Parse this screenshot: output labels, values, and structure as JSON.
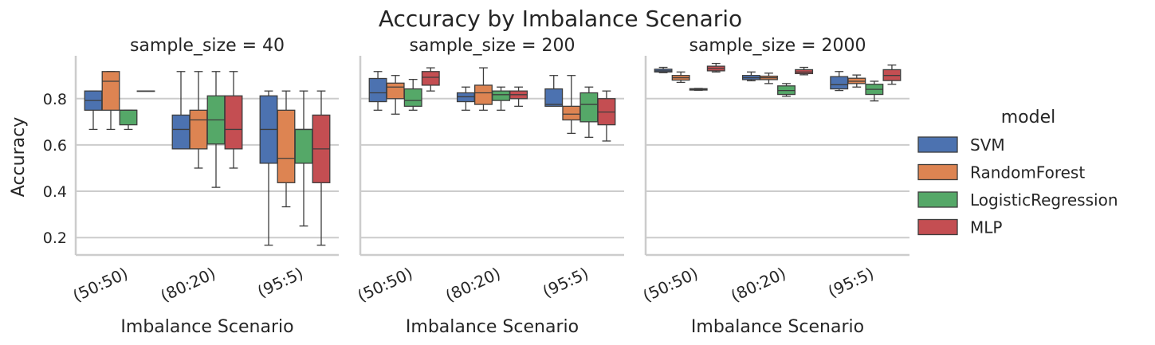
{
  "chart_data": {
    "type": "box",
    "title": "Accuracy by Imbalance Scenario",
    "ylabel": "Accuracy",
    "xlabel": "Imbalance Scenario",
    "ylim": [
      0.125,
      0.985
    ],
    "yticks": [
      0.2,
      0.4,
      0.6,
      0.8
    ],
    "ytick_labels": [
      "0.2",
      "0.4",
      "0.6",
      "0.8"
    ],
    "grid": "horizontal",
    "categories": [
      "(50:50)",
      "(80:20)",
      "(95:5)"
    ],
    "legend": {
      "title": "model",
      "placement": "right",
      "entries": [
        "SVM",
        "RandomForest",
        "LogisticRegression",
        "MLP"
      ]
    },
    "colors": {
      "SVM": "#4c72b0",
      "RandomForest": "#dd8452",
      "LogisticRegression": "#55a868",
      "MLP": "#c44e52",
      "edge": "#3d3d3d",
      "grid": "#cccccc",
      "axis": "#cccccc"
    },
    "panels": [
      {
        "title": "sample_size = 40",
        "series": [
          {
            "name": "SVM",
            "boxes": [
              {
                "category": "(50:50)",
                "whislo": 0.667,
                "q1": 0.75,
                "med": 0.792,
                "q3": 0.833,
                "whishi": 0.833
              },
              {
                "category": "(80:20)",
                "whislo": 0.583,
                "q1": 0.583,
                "med": 0.667,
                "q3": 0.729,
                "whishi": 0.917
              },
              {
                "category": "(95:5)",
                "whislo": 0.167,
                "q1": 0.521,
                "med": 0.667,
                "q3": 0.812,
                "whishi": 0.833
              }
            ]
          },
          {
            "name": "RandomForest",
            "boxes": [
              {
                "category": "(50:50)",
                "whislo": 0.667,
                "q1": 0.75,
                "med": 0.875,
                "q3": 0.917,
                "whishi": 0.917
              },
              {
                "category": "(80:20)",
                "whislo": 0.5,
                "q1": 0.583,
                "med": 0.708,
                "q3": 0.75,
                "whishi": 0.917
              },
              {
                "category": "(95:5)",
                "whislo": 0.333,
                "q1": 0.437,
                "med": 0.542,
                "q3": 0.75,
                "whishi": 0.833
              }
            ]
          },
          {
            "name": "LogisticRegression",
            "boxes": [
              {
                "category": "(50:50)",
                "whislo": 0.667,
                "q1": 0.687,
                "med": 0.75,
                "q3": 0.75,
                "whishi": 0.75
              },
              {
                "category": "(80:20)",
                "whislo": 0.417,
                "q1": 0.604,
                "med": 0.708,
                "q3": 0.812,
                "whishi": 0.917
              },
              {
                "category": "(95:5)",
                "whislo": 0.25,
                "q1": 0.521,
                "med": 0.667,
                "q3": 0.667,
                "whishi": 0.833
              }
            ]
          },
          {
            "name": "MLP",
            "boxes": [
              {
                "category": "(50:50)",
                "whislo": 0.833,
                "q1": 0.833,
                "med": 0.833,
                "q3": 0.833,
                "whishi": 0.833
              },
              {
                "category": "(80:20)",
                "whislo": 0.5,
                "q1": 0.583,
                "med": 0.667,
                "q3": 0.812,
                "whishi": 0.917
              },
              {
                "category": "(95:5)",
                "whislo": 0.167,
                "q1": 0.437,
                "med": 0.583,
                "q3": 0.729,
                "whishi": 0.833
              }
            ]
          }
        ]
      },
      {
        "title": "sample_size = 200",
        "series": [
          {
            "name": "SVM",
            "boxes": [
              {
                "category": "(50:50)",
                "whislo": 0.75,
                "q1": 0.787,
                "med": 0.825,
                "q3": 0.887,
                "whishi": 0.917
              },
              {
                "category": "(80:20)",
                "whislo": 0.75,
                "q1": 0.787,
                "med": 0.808,
                "q3": 0.825,
                "whishi": 0.85
              },
              {
                "category": "(95:5)",
                "whislo": 0.767,
                "q1": 0.767,
                "med": 0.775,
                "q3": 0.842,
                "whishi": 0.9
              }
            ]
          },
          {
            "name": "RandomForest",
            "boxes": [
              {
                "category": "(50:50)",
                "whislo": 0.733,
                "q1": 0.8,
                "med": 0.85,
                "q3": 0.867,
                "whishi": 0.9
              },
              {
                "category": "(80:20)",
                "whislo": 0.75,
                "q1": 0.775,
                "med": 0.825,
                "q3": 0.858,
                "whishi": 0.933
              },
              {
                "category": "(95:5)",
                "whislo": 0.65,
                "q1": 0.708,
                "med": 0.733,
                "q3": 0.767,
                "whishi": 0.9
              }
            ]
          },
          {
            "name": "LogisticRegression",
            "boxes": [
              {
                "category": "(50:50)",
                "whislo": 0.75,
                "q1": 0.767,
                "med": 0.792,
                "q3": 0.842,
                "whishi": 0.883
              },
              {
                "category": "(80:20)",
                "whislo": 0.75,
                "q1": 0.792,
                "med": 0.817,
                "q3": 0.833,
                "whishi": 0.85
              },
              {
                "category": "(95:5)",
                "whislo": 0.633,
                "q1": 0.7,
                "med": 0.775,
                "q3": 0.825,
                "whishi": 0.85
              }
            ]
          },
          {
            "name": "MLP",
            "boxes": [
              {
                "category": "(50:50)",
                "whislo": 0.833,
                "q1": 0.858,
                "med": 0.892,
                "q3": 0.917,
                "whishi": 0.933
              },
              {
                "category": "(80:20)",
                "whislo": 0.767,
                "q1": 0.8,
                "med": 0.817,
                "q3": 0.833,
                "whishi": 0.85
              },
              {
                "category": "(95:5)",
                "whislo": 0.617,
                "q1": 0.687,
                "med": 0.742,
                "q3": 0.8,
                "whishi": 0.833
              }
            ]
          }
        ]
      },
      {
        "title": "sample_size = 2000",
        "series": [
          {
            "name": "SVM",
            "boxes": [
              {
                "category": "(50:50)",
                "whislo": 0.912,
                "q1": 0.915,
                "med": 0.92,
                "q3": 0.927,
                "whishi": 0.935
              },
              {
                "category": "(80:20)",
                "whislo": 0.877,
                "q1": 0.882,
                "med": 0.89,
                "q3": 0.9,
                "whishi": 0.915
              },
              {
                "category": "(95:5)",
                "whislo": 0.835,
                "q1": 0.842,
                "med": 0.86,
                "q3": 0.895,
                "whishi": 0.917
              }
            ]
          },
          {
            "name": "RandomForest",
            "boxes": [
              {
                "category": "(50:50)",
                "whislo": 0.87,
                "q1": 0.88,
                "med": 0.89,
                "q3": 0.9,
                "whishi": 0.915
              },
              {
                "category": "(80:20)",
                "whislo": 0.865,
                "q1": 0.882,
                "med": 0.89,
                "q3": 0.897,
                "whishi": 0.91
              },
              {
                "category": "(95:5)",
                "whislo": 0.85,
                "q1": 0.865,
                "med": 0.875,
                "q3": 0.888,
                "whishi": 0.902
              }
            ]
          },
          {
            "name": "LogisticRegression",
            "boxes": [
              {
                "category": "(50:50)",
                "whislo": 0.836,
                "q1": 0.837,
                "med": 0.84,
                "q3": 0.843,
                "whishi": 0.844
              },
              {
                "category": "(80:20)",
                "whislo": 0.81,
                "q1": 0.818,
                "med": 0.835,
                "q3": 0.855,
                "whishi": 0.865
              },
              {
                "category": "(95:5)",
                "whislo": 0.79,
                "q1": 0.818,
                "med": 0.84,
                "q3": 0.862,
                "whishi": 0.875
              }
            ]
          },
          {
            "name": "MLP",
            "boxes": [
              {
                "category": "(50:50)",
                "whislo": 0.915,
                "q1": 0.92,
                "med": 0.93,
                "q3": 0.94,
                "whishi": 0.952
              },
              {
                "category": "(80:20)",
                "whislo": 0.903,
                "q1": 0.908,
                "med": 0.915,
                "q3": 0.925,
                "whishi": 0.935
              },
              {
                "category": "(95:5)",
                "whislo": 0.862,
                "q1": 0.878,
                "med": 0.9,
                "q3": 0.925,
                "whishi": 0.945
              }
            ]
          }
        ]
      }
    ]
  }
}
